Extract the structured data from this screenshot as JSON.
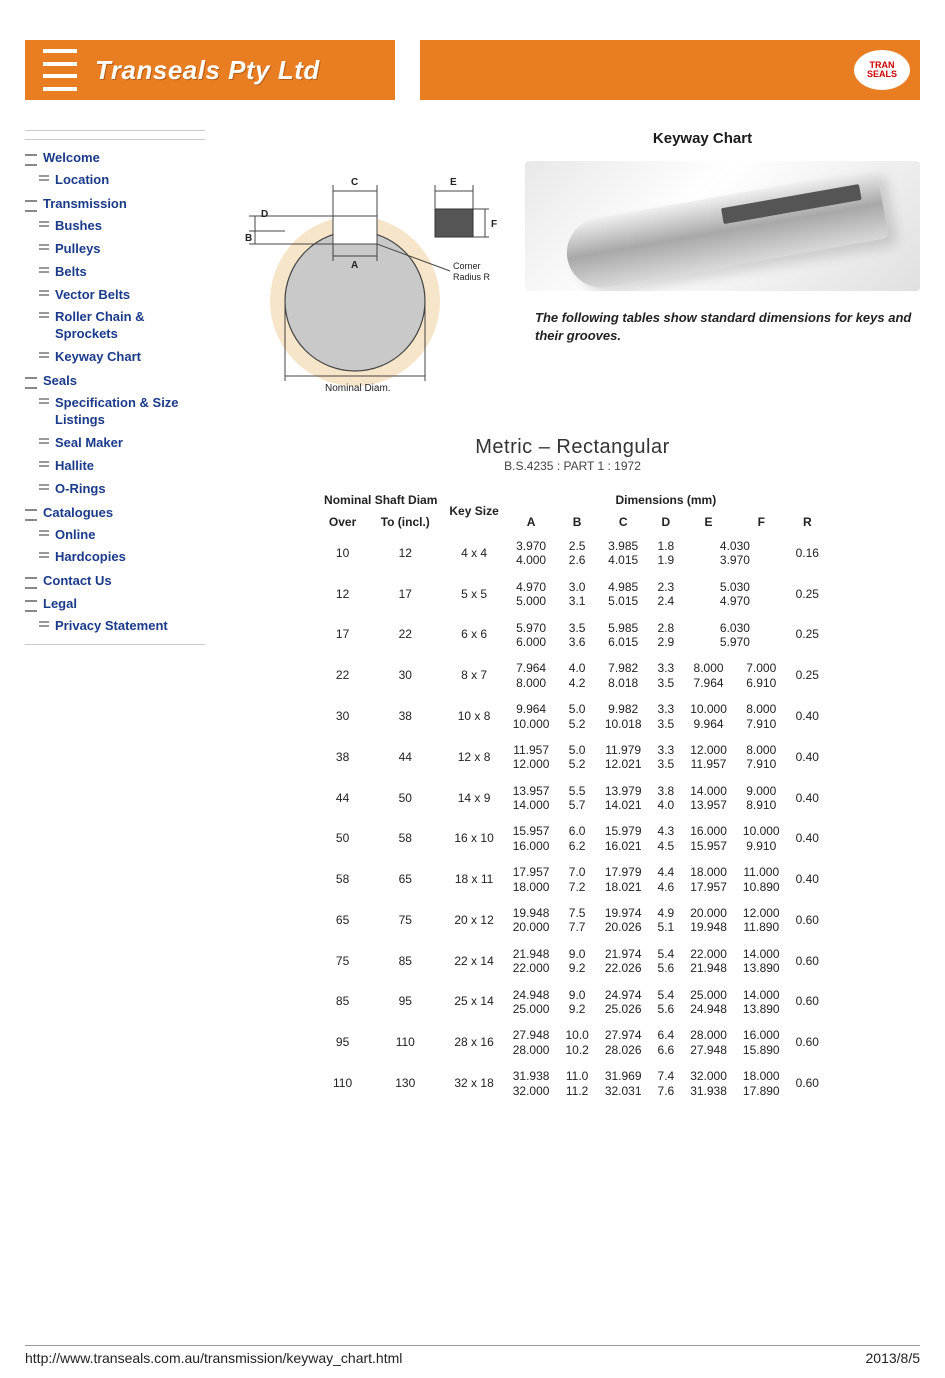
{
  "header": {
    "company": "Transeals Pty Ltd",
    "logo_text": "TRAN SEALS",
    "bg_color": "#e97d21",
    "text_color": "#ffffff"
  },
  "page_title": "Keyway Chart",
  "intro": "The following tables show standard dimensions for keys and their grooves.",
  "nav": [
    {
      "type": "cat",
      "label": "Welcome"
    },
    {
      "type": "item",
      "label": "Location"
    },
    {
      "type": "cat",
      "label": "Transmission"
    },
    {
      "type": "item",
      "label": "Bushes"
    },
    {
      "type": "item",
      "label": "Pulleys"
    },
    {
      "type": "item",
      "label": "Belts"
    },
    {
      "type": "item",
      "label": "Vector Belts"
    },
    {
      "type": "item",
      "label": "Roller Chain & Sprockets"
    },
    {
      "type": "item",
      "label": "Keyway Chart"
    },
    {
      "type": "cat",
      "label": "Seals"
    },
    {
      "type": "item",
      "label": "Specification & Size Listings"
    },
    {
      "type": "item",
      "label": "Seal Maker"
    },
    {
      "type": "item",
      "label": "Hallite"
    },
    {
      "type": "item",
      "label": "O-Rings"
    },
    {
      "type": "cat",
      "label": "Catalogues"
    },
    {
      "type": "item",
      "label": "Online"
    },
    {
      "type": "item",
      "label": "Hardcopies"
    },
    {
      "type": "cat",
      "label": "Contact Us"
    },
    {
      "type": "cat",
      "label": "Legal"
    },
    {
      "type": "item",
      "label": "Privacy Statement"
    }
  ],
  "schematic": {
    "labels": {
      "A": "A",
      "B": "B",
      "C": "C",
      "D": "D",
      "E": "E",
      "F": "F",
      "corner": "Corner Radius R",
      "nominal": "Nominal Diam."
    },
    "colors": {
      "shaft_fill": "#c9c9c9",
      "shaft_stroke": "#444",
      "hub_ring": "#f6e5c8",
      "key_fill": "#555555"
    }
  },
  "spec": {
    "title": "Metric – Rectangular",
    "subtitle": "B.S.4235 : PART 1 : 1972",
    "group_headers": {
      "shaft": "Nominal Shaft Diam",
      "key": "Key Size",
      "dims": "Dimensions (mm)"
    },
    "col_headers": {
      "over": "Over",
      "to": "To (incl.)",
      "A": "A",
      "B": "B",
      "C": "C",
      "D": "D",
      "E": "E",
      "F": "F",
      "R": "R"
    },
    "rows": [
      {
        "over": "10",
        "to": "12",
        "key": "4 x 4",
        "A": [
          "3.970",
          "4.000"
        ],
        "B": [
          "2.5",
          "2.6"
        ],
        "C": [
          "3.985",
          "4.015"
        ],
        "D": [
          "1.8",
          "1.9"
        ],
        "E": [
          "4.030",
          "3.970"
        ],
        "F": null,
        "R": "0.16"
      },
      {
        "over": "12",
        "to": "17",
        "key": "5 x 5",
        "A": [
          "4.970",
          "5.000"
        ],
        "B": [
          "3.0",
          "3.1"
        ],
        "C": [
          "4.985",
          "5.015"
        ],
        "D": [
          "2.3",
          "2.4"
        ],
        "E": [
          "5.030",
          "4.970"
        ],
        "F": null,
        "R": "0.25"
      },
      {
        "over": "17",
        "to": "22",
        "key": "6 x 6",
        "A": [
          "5.970",
          "6.000"
        ],
        "B": [
          "3.5",
          "3.6"
        ],
        "C": [
          "5.985",
          "6.015"
        ],
        "D": [
          "2.8",
          "2.9"
        ],
        "E": [
          "6.030",
          "5.970"
        ],
        "F": null,
        "R": "0.25"
      },
      {
        "over": "22",
        "to": "30",
        "key": "8 x 7",
        "A": [
          "7.964",
          "8.000"
        ],
        "B": [
          "4.0",
          "4.2"
        ],
        "C": [
          "7.982",
          "8.018"
        ],
        "D": [
          "3.3",
          "3.5"
        ],
        "E": [
          "8.000",
          "7.964"
        ],
        "F": [
          "7.000",
          "6.910"
        ],
        "R": "0.25"
      },
      {
        "over": "30",
        "to": "38",
        "key": "10 x 8",
        "A": [
          "9.964",
          "10.000"
        ],
        "B": [
          "5.0",
          "5.2"
        ],
        "C": [
          "9.982",
          "10.018"
        ],
        "D": [
          "3.3",
          "3.5"
        ],
        "E": [
          "10.000",
          "9.964"
        ],
        "F": [
          "8.000",
          "7.910"
        ],
        "R": "0.40"
      },
      {
        "over": "38",
        "to": "44",
        "key": "12 x 8",
        "A": [
          "11.957",
          "12.000"
        ],
        "B": [
          "5.0",
          "5.2"
        ],
        "C": [
          "11.979",
          "12.021"
        ],
        "D": [
          "3.3",
          "3.5"
        ],
        "E": [
          "12.000",
          "11.957"
        ],
        "F": [
          "8.000",
          "7.910"
        ],
        "R": "0.40"
      },
      {
        "over": "44",
        "to": "50",
        "key": "14 x 9",
        "A": [
          "13.957",
          "14.000"
        ],
        "B": [
          "5.5",
          "5.7"
        ],
        "C": [
          "13.979",
          "14.021"
        ],
        "D": [
          "3.8",
          "4.0"
        ],
        "E": [
          "14.000",
          "13.957"
        ],
        "F": [
          "9.000",
          "8.910"
        ],
        "R": "0.40"
      },
      {
        "over": "50",
        "to": "58",
        "key": "16 x 10",
        "A": [
          "15.957",
          "16.000"
        ],
        "B": [
          "6.0",
          "6.2"
        ],
        "C": [
          "15.979",
          "16.021"
        ],
        "D": [
          "4.3",
          "4.5"
        ],
        "E": [
          "16.000",
          "15.957"
        ],
        "F": [
          "10.000",
          "9.910"
        ],
        "R": "0.40"
      },
      {
        "over": "58",
        "to": "65",
        "key": "18 x 11",
        "A": [
          "17.957",
          "18.000"
        ],
        "B": [
          "7.0",
          "7.2"
        ],
        "C": [
          "17.979",
          "18.021"
        ],
        "D": [
          "4.4",
          "4.6"
        ],
        "E": [
          "18.000",
          "17.957"
        ],
        "F": [
          "11.000",
          "10.890"
        ],
        "R": "0.40"
      },
      {
        "over": "65",
        "to": "75",
        "key": "20 x 12",
        "A": [
          "19.948",
          "20.000"
        ],
        "B": [
          "7.5",
          "7.7"
        ],
        "C": [
          "19.974",
          "20.026"
        ],
        "D": [
          "4.9",
          "5.1"
        ],
        "E": [
          "20.000",
          "19.948"
        ],
        "F": [
          "12.000",
          "11.890"
        ],
        "R": "0.60"
      },
      {
        "over": "75",
        "to": "85",
        "key": "22 x 14",
        "A": [
          "21.948",
          "22.000"
        ],
        "B": [
          "9.0",
          "9.2"
        ],
        "C": [
          "21.974",
          "22.026"
        ],
        "D": [
          "5.4",
          "5.6"
        ],
        "E": [
          "22.000",
          "21.948"
        ],
        "F": [
          "14.000",
          "13.890"
        ],
        "R": "0.60"
      },
      {
        "over": "85",
        "to": "95",
        "key": "25 x 14",
        "A": [
          "24.948",
          "25.000"
        ],
        "B": [
          "9.0",
          "9.2"
        ],
        "C": [
          "24.974",
          "25.026"
        ],
        "D": [
          "5.4",
          "5.6"
        ],
        "E": [
          "25.000",
          "24.948"
        ],
        "F": [
          "14.000",
          "13.890"
        ],
        "R": "0.60"
      },
      {
        "over": "95",
        "to": "110",
        "key": "28 x 16",
        "A": [
          "27.948",
          "28.000"
        ],
        "B": [
          "10.0",
          "10.2"
        ],
        "C": [
          "27.974",
          "28.026"
        ],
        "D": [
          "6.4",
          "6.6"
        ],
        "E": [
          "28.000",
          "27.948"
        ],
        "F": [
          "16.000",
          "15.890"
        ],
        "R": "0.60"
      },
      {
        "over": "110",
        "to": "130",
        "key": "32 x 18",
        "A": [
          "31.938",
          "32.000"
        ],
        "B": [
          "11.0",
          "11.2"
        ],
        "C": [
          "31.969",
          "32.031"
        ],
        "D": [
          "7.4",
          "7.6"
        ],
        "E": [
          "32.000",
          "31.938"
        ],
        "F": [
          "18.000",
          "17.890"
        ],
        "R": "0.60"
      }
    ]
  },
  "footer": {
    "url": "http://www.transeals.com.au/transmission/keyway_chart.html",
    "date": "2013/8/5"
  }
}
